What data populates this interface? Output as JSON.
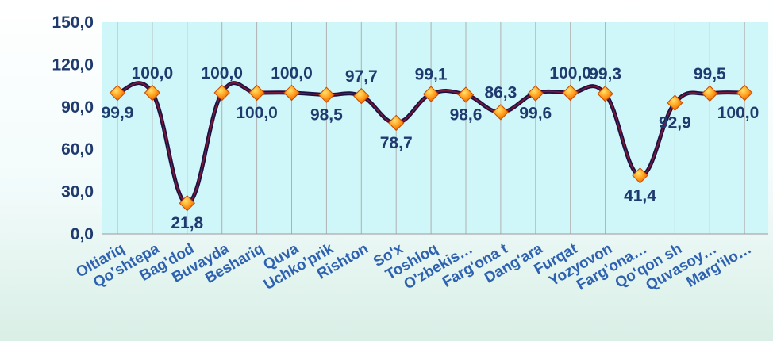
{
  "chart_data": {
    "type": "line",
    "title": "",
    "xlabel": "",
    "ylabel": "",
    "ylim": [
      0,
      150
    ],
    "yticks": [
      "0,0",
      "30,0",
      "60,0",
      "90,0",
      "120,0",
      "150,0"
    ],
    "grid": true,
    "legend": "none",
    "categories": [
      "Oltiariq",
      "Qo'shtepa",
      "Bag'dod",
      "Buvayda",
      "Beshariq",
      "Quva",
      "Uchko'prik",
      "Rishton",
      "So'x",
      "Toshloq",
      "O'zbekis…",
      "Farg'ona t",
      "Dang'ara",
      "Furqat",
      "Yozyovon",
      "Farg'ona…",
      "Qo'qon sh",
      "Quvasoy…",
      "Marg'ilo…"
    ],
    "series": [
      {
        "values": [
          99.9,
          100.0,
          21.8,
          100.0,
          100.0,
          100.0,
          98.5,
          97.7,
          78.7,
          99.1,
          98.6,
          86.3,
          99.6,
          100.0,
          99.3,
          41.4,
          92.9,
          99.5,
          100.0
        ],
        "labels": [
          "99,9",
          "100,0",
          "21,8",
          "100,0",
          "100,0",
          "100,0",
          "98,5",
          "97,7",
          "78,7",
          "99,1",
          "98,6",
          "86,3",
          "99,6",
          "100,0",
          "99,3",
          "41,4",
          "92,9",
          "99,5",
          "100,0"
        ]
      }
    ],
    "colors": {
      "line": "#1c1140",
      "line_highlight": "#8a1a3a",
      "marker": "#ff7a00",
      "marker_light": "#ffd24a",
      "plot_background": "#cff7f9",
      "grid": "#b0b0b0",
      "tick_text": "#1f3a6e",
      "category_text": "#2e62b0"
    }
  }
}
